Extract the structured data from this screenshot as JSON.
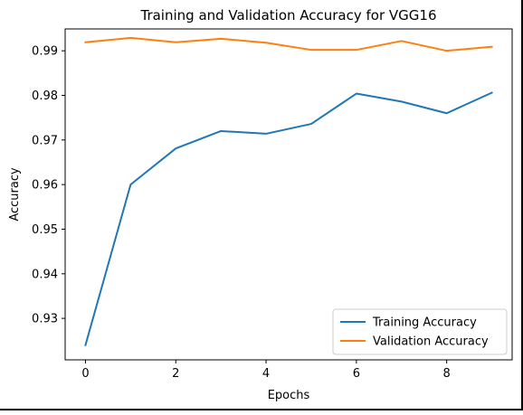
{
  "chart_data": {
    "type": "line",
    "title": "Training and Validation Accuracy for VGG16",
    "xlabel": "Epochs",
    "ylabel": "Accuracy",
    "x": [
      0,
      1,
      2,
      3,
      4,
      5,
      6,
      7,
      8,
      9
    ],
    "xticks": [
      0,
      2,
      4,
      6,
      8
    ],
    "xtick_labels": [
      "0",
      "2",
      "4",
      "6",
      "8"
    ],
    "yticks": [
      0.93,
      0.94,
      0.95,
      0.96,
      0.97,
      0.98,
      0.99
    ],
    "ytick_labels": [
      "0.93",
      "0.94",
      "0.95",
      "0.96",
      "0.97",
      "0.98",
      "0.99"
    ],
    "xlim": [
      -0.45,
      9.45
    ],
    "ylim": [
      0.9207,
      0.9949
    ],
    "grid": false,
    "legend_position": "lower-right",
    "series": [
      {
        "name": "Training Accuracy",
        "color": "#1f77b4",
        "values": [
          0.924,
          0.96,
          0.9681,
          0.972,
          0.9714,
          0.9736,
          0.9804,
          0.9786,
          0.976,
          0.9806
        ]
      },
      {
        "name": "Validation Accuracy",
        "color": "#ff7f0e",
        "values": [
          0.9919,
          0.9929,
          0.9919,
          0.9927,
          0.9918,
          0.9902,
          0.9902,
          0.9922,
          0.99,
          0.9909
        ]
      }
    ]
  }
}
